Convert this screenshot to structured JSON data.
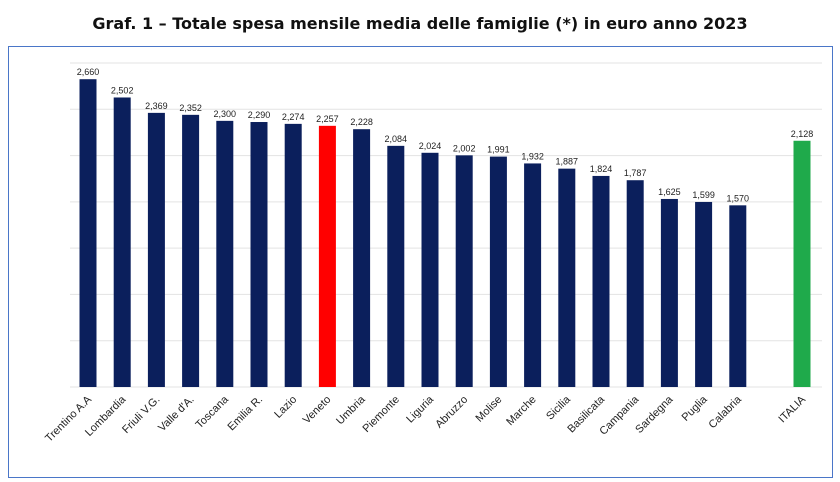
{
  "title": "Graf. 1 – Totale spesa mensile media delle famiglie (*) in euro anno 2023",
  "colors": {
    "default": "#0b1f5c",
    "highlight": "#ff0000",
    "italia": "#1faa4b",
    "grid": "#e3e3e3"
  },
  "chart_data": {
    "type": "bar",
    "title": "Graf. 1 – Totale spesa mensile media delle famiglie (*) in euro anno 2023",
    "xlabel": "",
    "ylabel": "",
    "ylim": [
      0,
      2800
    ],
    "grid": true,
    "categories": [
      "Trentino A.A",
      "Lombardia",
      "Friuli V.G.",
      "Valle d'A.",
      "Toscana",
      "Emilia R.",
      "Lazio",
      "Veneto",
      "Umbria",
      "Piemonte",
      "Liguria",
      "Abruzzo",
      "Molise",
      "Marche",
      "Sicilia",
      "Basilicata",
      "Campania",
      "Sardegna",
      "Puglia",
      "Calabria",
      "ITALIA"
    ],
    "values": [
      2660,
      2502,
      2369,
      2352,
      2300,
      2290,
      2274,
      2257,
      2228,
      2084,
      2024,
      2002,
      1991,
      1932,
      1887,
      1824,
      1787,
      1625,
      1599,
      1570,
      2128
    ],
    "value_labels": [
      "2,660",
      "2,502",
      "2,369",
      "2,352",
      "2,300",
      "2,290",
      "2,274",
      "2,257",
      "2,228",
      "2,084",
      "2,024",
      "2,002",
      "1,991",
      "1,932",
      "1,887",
      "1,824",
      "1,787",
      "1,625",
      "1,599",
      "1,570",
      "2,128"
    ],
    "highlight": {
      "Veneto": "red",
      "ITALIA": "green"
    }
  }
}
